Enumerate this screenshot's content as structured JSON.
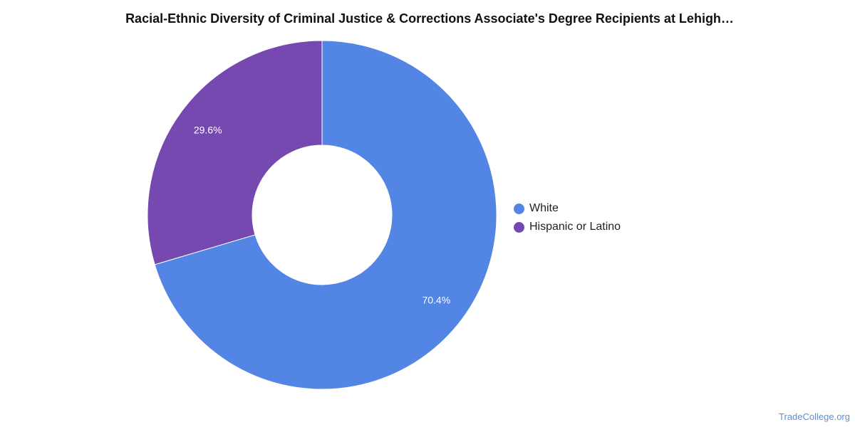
{
  "chart_data": {
    "type": "pie",
    "title": "Racial-Ethnic Diversity of Criminal Justice & Corrections Associate's Degree Recipients at Lehigh…",
    "series": [
      {
        "name": "White",
        "value": 70.4,
        "label": "70.4%",
        "color": "#5386e4"
      },
      {
        "name": "Hispanic or Latino",
        "value": 29.6,
        "label": "29.6%",
        "color": "#7649b1"
      }
    ],
    "legend_position": "right",
    "donut": true
  },
  "watermark": "TradeCollege.org"
}
